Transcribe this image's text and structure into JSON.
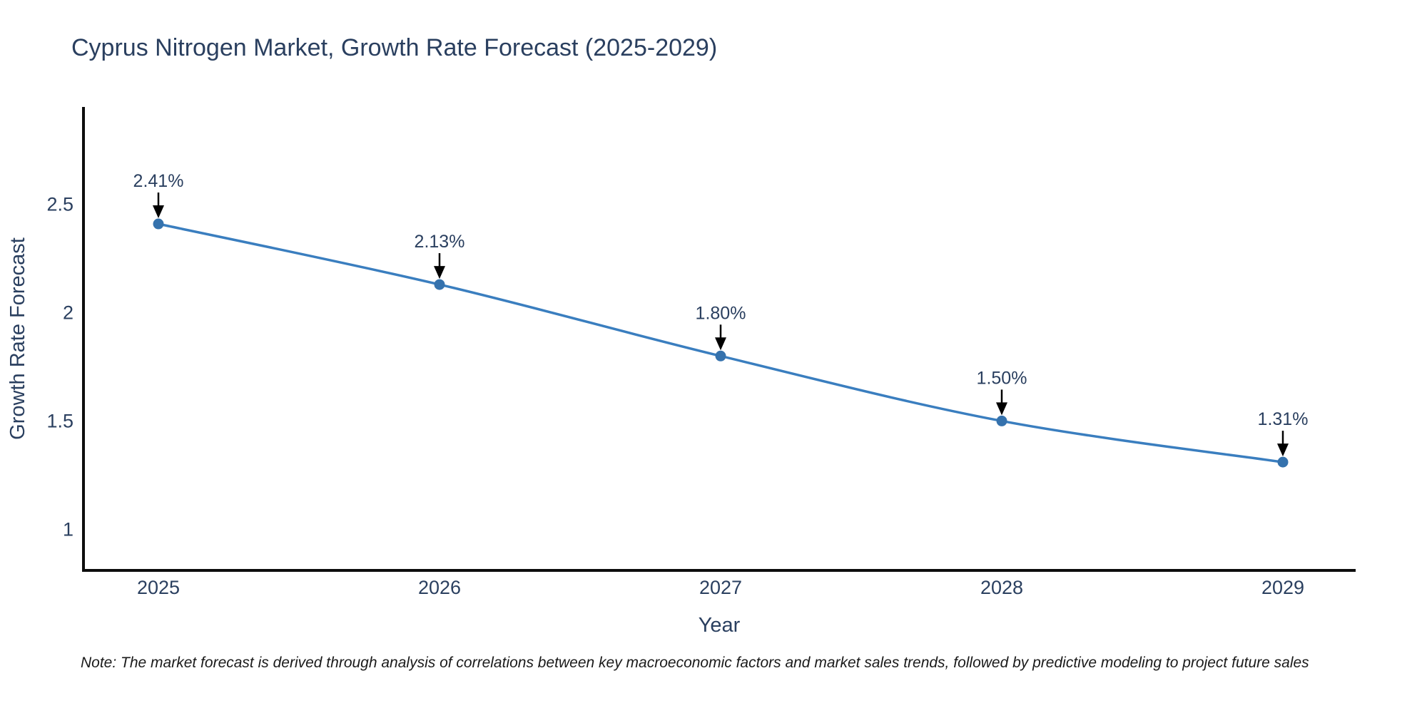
{
  "title": "Cyprus Nitrogen Market, Growth Rate Forecast (2025-2029)",
  "note": "Note: The market forecast is derived through analysis of correlations between key macroeconomic factors and market sales trends, followed by predictive modeling to project future sales",
  "colors": {
    "line": "#3a7ebf",
    "marker": "#3572ad",
    "text": "#2a3f5f",
    "axis": "#0d0d0d",
    "arrow": "#000000",
    "background": "#ffffff"
  },
  "chart_data": {
    "type": "line",
    "title": "Cyprus Nitrogen Market, Growth Rate Forecast (2025-2029)",
    "xlabel": "Year",
    "ylabel": "Growth Rate Forecast",
    "x": [
      "2025",
      "2026",
      "2027",
      "2028",
      "2029"
    ],
    "values": [
      2.41,
      2.13,
      1.8,
      1.5,
      1.31
    ],
    "point_labels": [
      "2.41%",
      "2.13%",
      "1.80%",
      "1.50%",
      "1.31%"
    ],
    "yticks": [
      1,
      1.5,
      2,
      2.5
    ],
    "ylim": [
      0.81,
      2.95
    ],
    "grid": false,
    "legend": "none",
    "line_shape": "spline",
    "markers": true,
    "annotation_style": "value label above each point with black down-arrow"
  }
}
